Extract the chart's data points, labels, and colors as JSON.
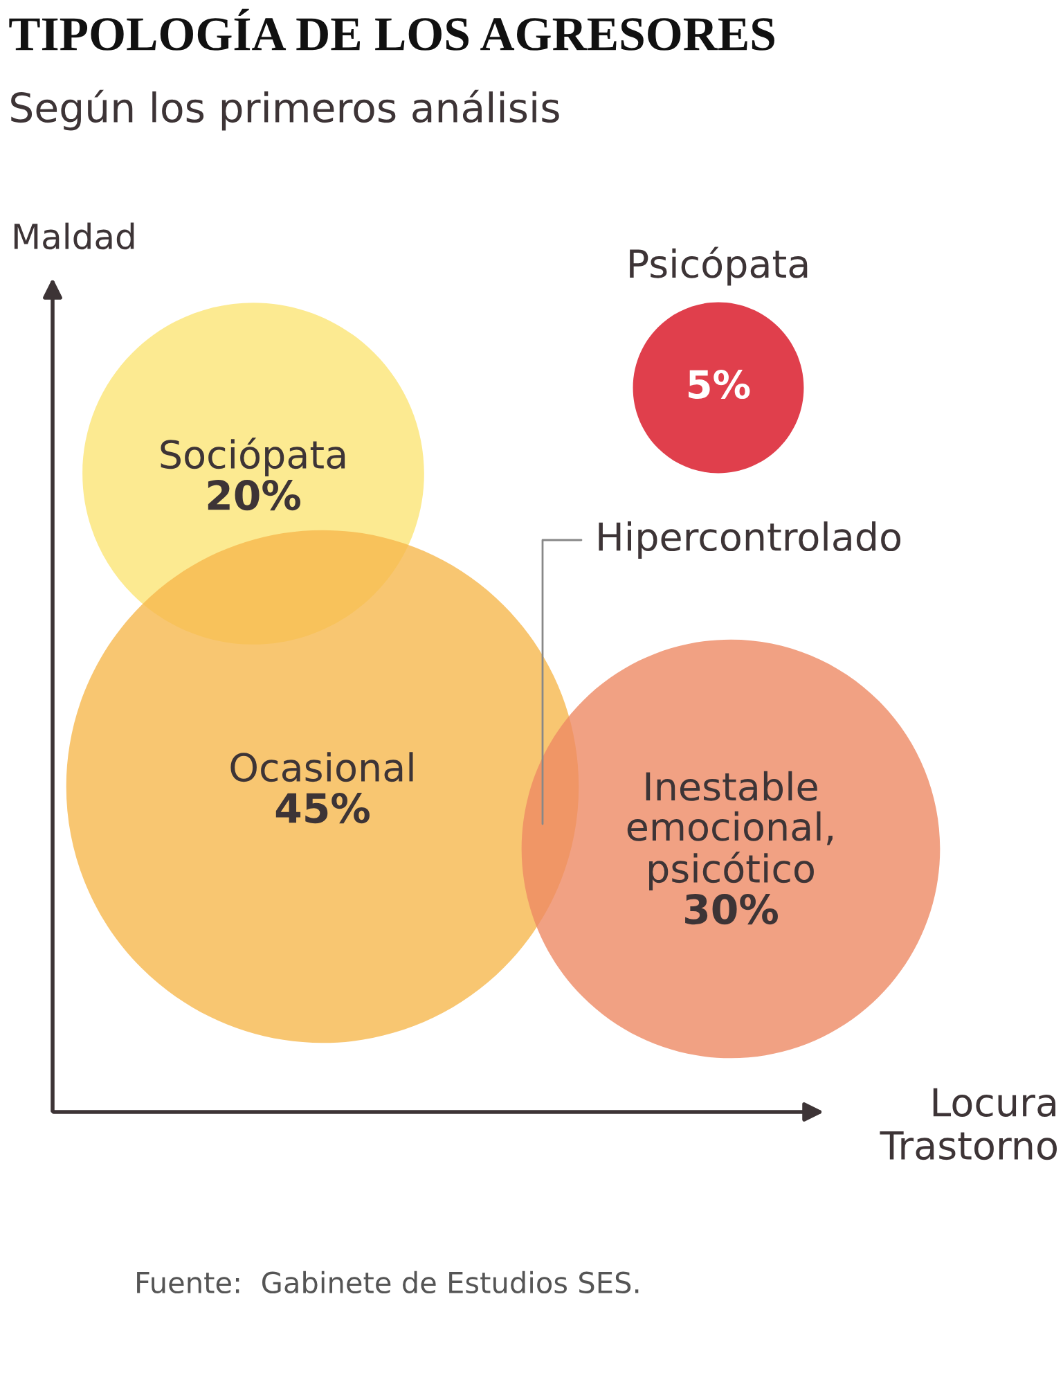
{
  "chart_data": {
    "type": "other",
    "title": "TIPOLOGÍA DE LOS AGRESORES",
    "subtitle": "Según los primeros análisis",
    "xlabel": "Locura\nTrastorno",
    "ylabel": "Maldad",
    "categories": [
      "Sociópata",
      "Ocasional",
      "Inestable\nemocional,\npsicótico",
      "Psicópata"
    ],
    "values": [
      20,
      45,
      30,
      5
    ],
    "colors": [
      "#fbe576",
      "#f6b84e",
      "#ee8a64",
      "#d80f1f"
    ],
    "value_labels": [
      "20%",
      "45%",
      "30%",
      "5%"
    ],
    "annotations": [
      "Hipercontrolado",
      "Fuente:  Gabinete de Estudios SES."
    ]
  }
}
